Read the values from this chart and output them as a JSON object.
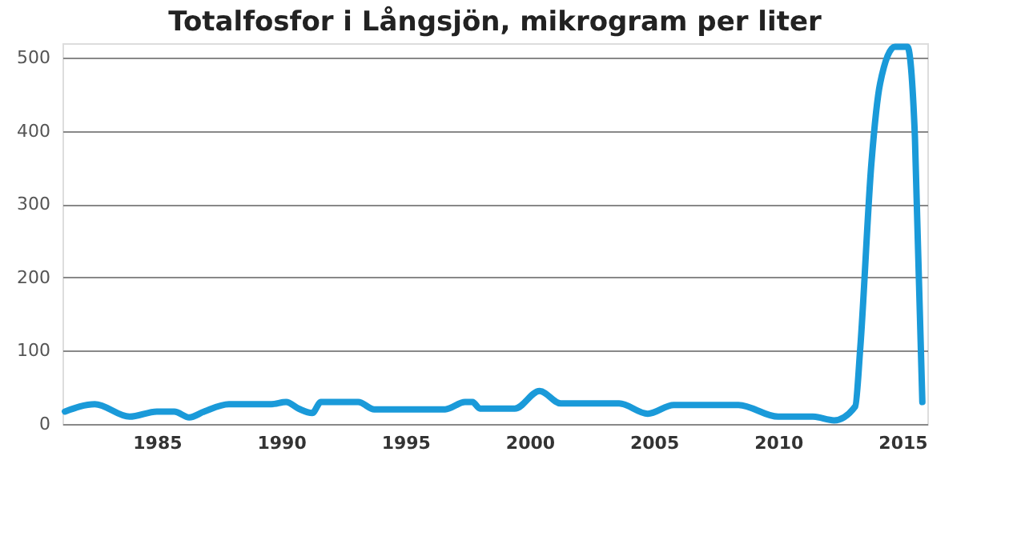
{
  "chart_data": {
    "type": "line",
    "title": "Totalfosfor i Långsjön, mikrogram per liter",
    "x": [
      1981.3,
      1982.5,
      1983.9,
      1985.0,
      1985.7,
      1986.3,
      1986.9,
      1987.9,
      1989.6,
      1990.2,
      1990.7,
      1991.25,
      1991.6,
      1993.1,
      1993.75,
      1996.6,
      1997.4,
      1997.7,
      1998.0,
      1999.4,
      2000.4,
      2001.25,
      2003.6,
      2004.75,
      2005.8,
      2008.4,
      2010.0,
      2011.4,
      2012.25,
      2013.1,
      2013.3,
      2013.75,
      2014.1,
      2014.7,
      2015.2,
      2015.5,
      2015.8
    ],
    "series": [
      {
        "color": "#1a9ad9",
        "values": [
          17,
          27,
          10,
          17,
          17,
          9,
          17,
          27,
          27,
          30,
          21,
          15,
          30,
          30,
          20,
          20,
          30,
          30,
          21,
          21,
          45,
          28,
          28,
          14,
          26,
          26,
          10,
          10,
          5,
          24,
          103,
          356,
          465,
          515,
          515,
          393,
          30
        ]
      }
    ],
    "xlim": [
      1981.2,
      2016
    ],
    "xticks": [
      1985,
      1990,
      1995,
      2000,
      2005,
      2010,
      2015
    ],
    "ylim": [
      0,
      520
    ],
    "yticks": [
      0,
      100,
      200,
      300,
      400,
      500
    ],
    "grid": "y",
    "line_style": "solid"
  }
}
